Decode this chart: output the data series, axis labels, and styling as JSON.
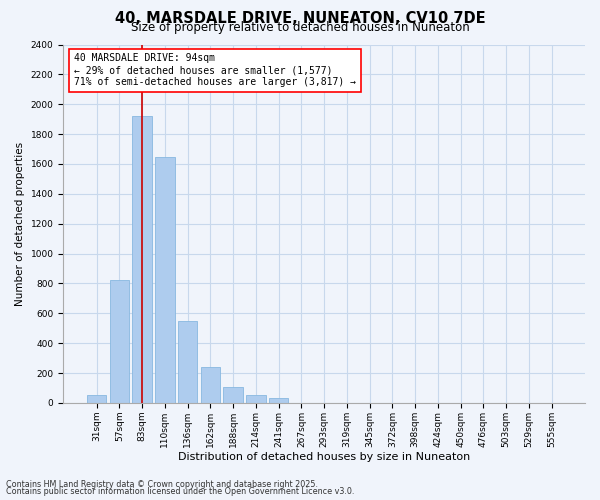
{
  "title": "40, MARSDALE DRIVE, NUNEATON, CV10 7DE",
  "subtitle": "Size of property relative to detached houses in Nuneaton",
  "xlabel": "Distribution of detached houses by size in Nuneaton",
  "ylabel": "Number of detached properties",
  "categories": [
    "31sqm",
    "57sqm",
    "83sqm",
    "110sqm",
    "136sqm",
    "162sqm",
    "188sqm",
    "214sqm",
    "241sqm",
    "267sqm",
    "293sqm",
    "319sqm",
    "345sqm",
    "372sqm",
    "398sqm",
    "424sqm",
    "450sqm",
    "476sqm",
    "503sqm",
    "529sqm",
    "555sqm"
  ],
  "values": [
    50,
    820,
    1920,
    1650,
    550,
    240,
    110,
    50,
    30,
    0,
    0,
    0,
    0,
    0,
    0,
    0,
    0,
    0,
    0,
    0,
    0
  ],
  "bar_color": "#aeccee",
  "bar_edge_color": "#88b8e0",
  "vline_x_index": 2,
  "vline_color": "#cc0000",
  "annotation_text_line1": "40 MARSDALE DRIVE: 94sqm",
  "annotation_text_line2": "← 29% of detached houses are smaller (1,577)",
  "annotation_text_line3": "71% of semi-detached houses are larger (3,817) →",
  "ylim": [
    0,
    2400
  ],
  "yticks": [
    0,
    200,
    400,
    600,
    800,
    1000,
    1200,
    1400,
    1600,
    1800,
    2000,
    2200,
    2400
  ],
  "footnote1": "Contains HM Land Registry data © Crown copyright and database right 2025.",
  "footnote2": "Contains public sector information licensed under the Open Government Licence v3.0.",
  "bg_color": "#f0f4fb",
  "plot_bg_color": "#f0f4fb",
  "grid_color": "#c8d8ec",
  "title_fontsize": 10.5,
  "subtitle_fontsize": 8.5,
  "xlabel_fontsize": 8,
  "ylabel_fontsize": 7.5,
  "tick_fontsize": 6.5,
  "annotation_fontsize": 7,
  "footnote_fontsize": 5.8
}
